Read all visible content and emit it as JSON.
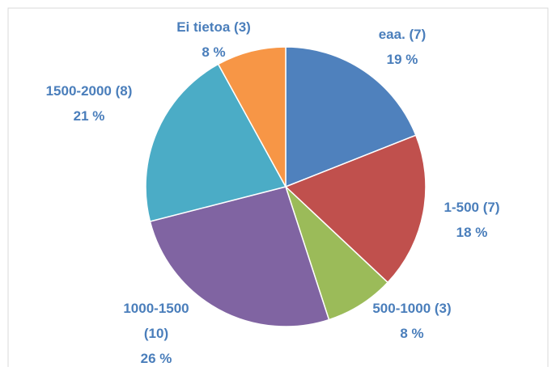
{
  "chart_data": {
    "type": "pie",
    "categories": [
      "eaa. (7)",
      "1-500 (7)",
      "500-1000 (3)",
      "1000-1500 (10)",
      "1500-2000 (8)",
      "Ei tietoa (3)"
    ],
    "values": [
      19,
      18,
      8,
      26,
      21,
      8
    ],
    "value_labels": [
      "19 %",
      "18 %",
      "8 %",
      "26 %",
      "21 %",
      "8 %"
    ],
    "colors": [
      "#4f81bd",
      "#c0504d",
      "#9bbb59",
      "#8064a2",
      "#4bacc6",
      "#f79646"
    ]
  }
}
